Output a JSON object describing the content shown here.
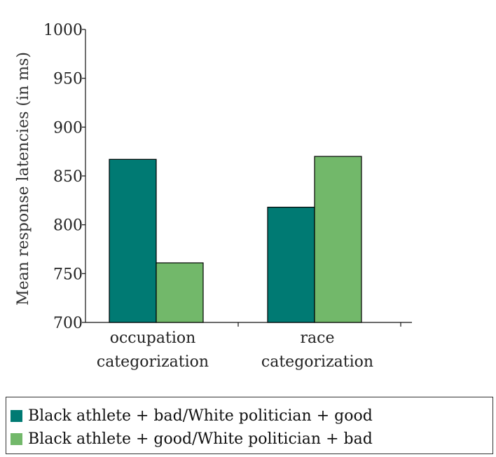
{
  "chart_data": {
    "type": "bar",
    "ylabel": "Mean response latencies (in ms)",
    "xlabel": "",
    "title": "",
    "ylim": [
      700,
      1000
    ],
    "yticks": [
      700,
      750,
      800,
      850,
      900,
      950,
      1000
    ],
    "categories": [
      [
        "occupation",
        "categorization"
      ],
      [
        "race",
        "categorization"
      ]
    ],
    "series": [
      {
        "name": "Black athlete + bad/White politician + good",
        "color": "#007a73",
        "values": [
          867,
          818
        ]
      },
      {
        "name": "Black athlete + good/White politician + bad",
        "color": "#72b86a",
        "values": [
          761,
          870
        ]
      }
    ],
    "legend_position": "bottom",
    "grid": false
  }
}
